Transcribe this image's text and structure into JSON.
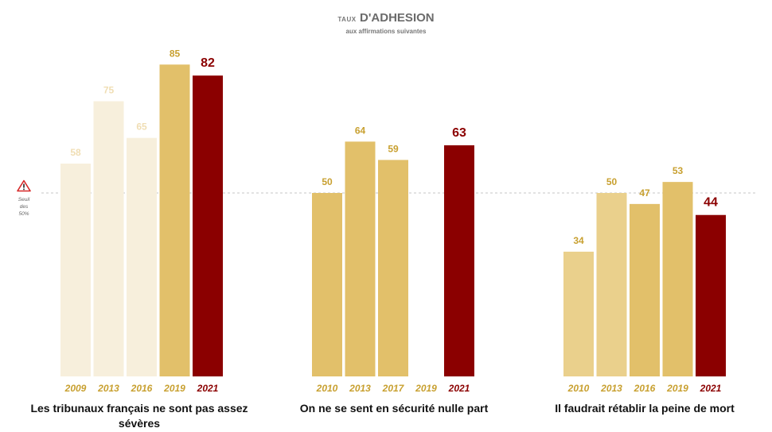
{
  "header": {
    "title_prefix": "TAUX",
    "title_main": "D'ADHESION",
    "subtitle": "aux affirmations suivantes"
  },
  "threshold": {
    "label_line1": "Seuil",
    "label_line2": "des 50%",
    "value": 50,
    "icon": "warning-triangle-icon"
  },
  "colors": {
    "pale": "#f7efdc",
    "light": "#ead08c",
    "gold": "#e2c06a",
    "highlight": "#8b0000",
    "year_text": "#c8a030",
    "value_text": "#c8a030",
    "value_pale": "#f0deb4"
  },
  "chart_data": {
    "type": "bar",
    "ylim": [
      0,
      100
    ],
    "groups": [
      {
        "label": "Les tribunaux français ne sont pas assez sévères",
        "bars": [
          {
            "year": "2009",
            "value": 58,
            "tone": "pale"
          },
          {
            "year": "2013",
            "value": 75,
            "tone": "pale"
          },
          {
            "year": "2016",
            "value": 65,
            "tone": "pale"
          },
          {
            "year": "2019",
            "value": 85,
            "tone": "gold"
          },
          {
            "year": "2021",
            "value": 82,
            "tone": "highlight"
          }
        ]
      },
      {
        "label": "On ne se sent en sécurité nulle part",
        "bars": [
          {
            "year": "2010",
            "value": 50,
            "tone": "gold"
          },
          {
            "year": "2013",
            "value": 64,
            "tone": "gold"
          },
          {
            "year": "2017",
            "value": 59,
            "tone": "gold"
          },
          {
            "year": "2019",
            "value": null,
            "tone": "gold"
          },
          {
            "year": "2021",
            "value": 63,
            "tone": "highlight"
          }
        ]
      },
      {
        "label": "Il faudrait rétablir la peine de mort",
        "bars": [
          {
            "year": "2010",
            "value": 34,
            "tone": "light"
          },
          {
            "year": "2013",
            "value": 50,
            "tone": "light"
          },
          {
            "year": "2016",
            "value": 47,
            "tone": "gold"
          },
          {
            "year": "2019",
            "value": 53,
            "tone": "gold"
          },
          {
            "year": "2021",
            "value": 44,
            "tone": "highlight"
          }
        ]
      }
    ]
  }
}
